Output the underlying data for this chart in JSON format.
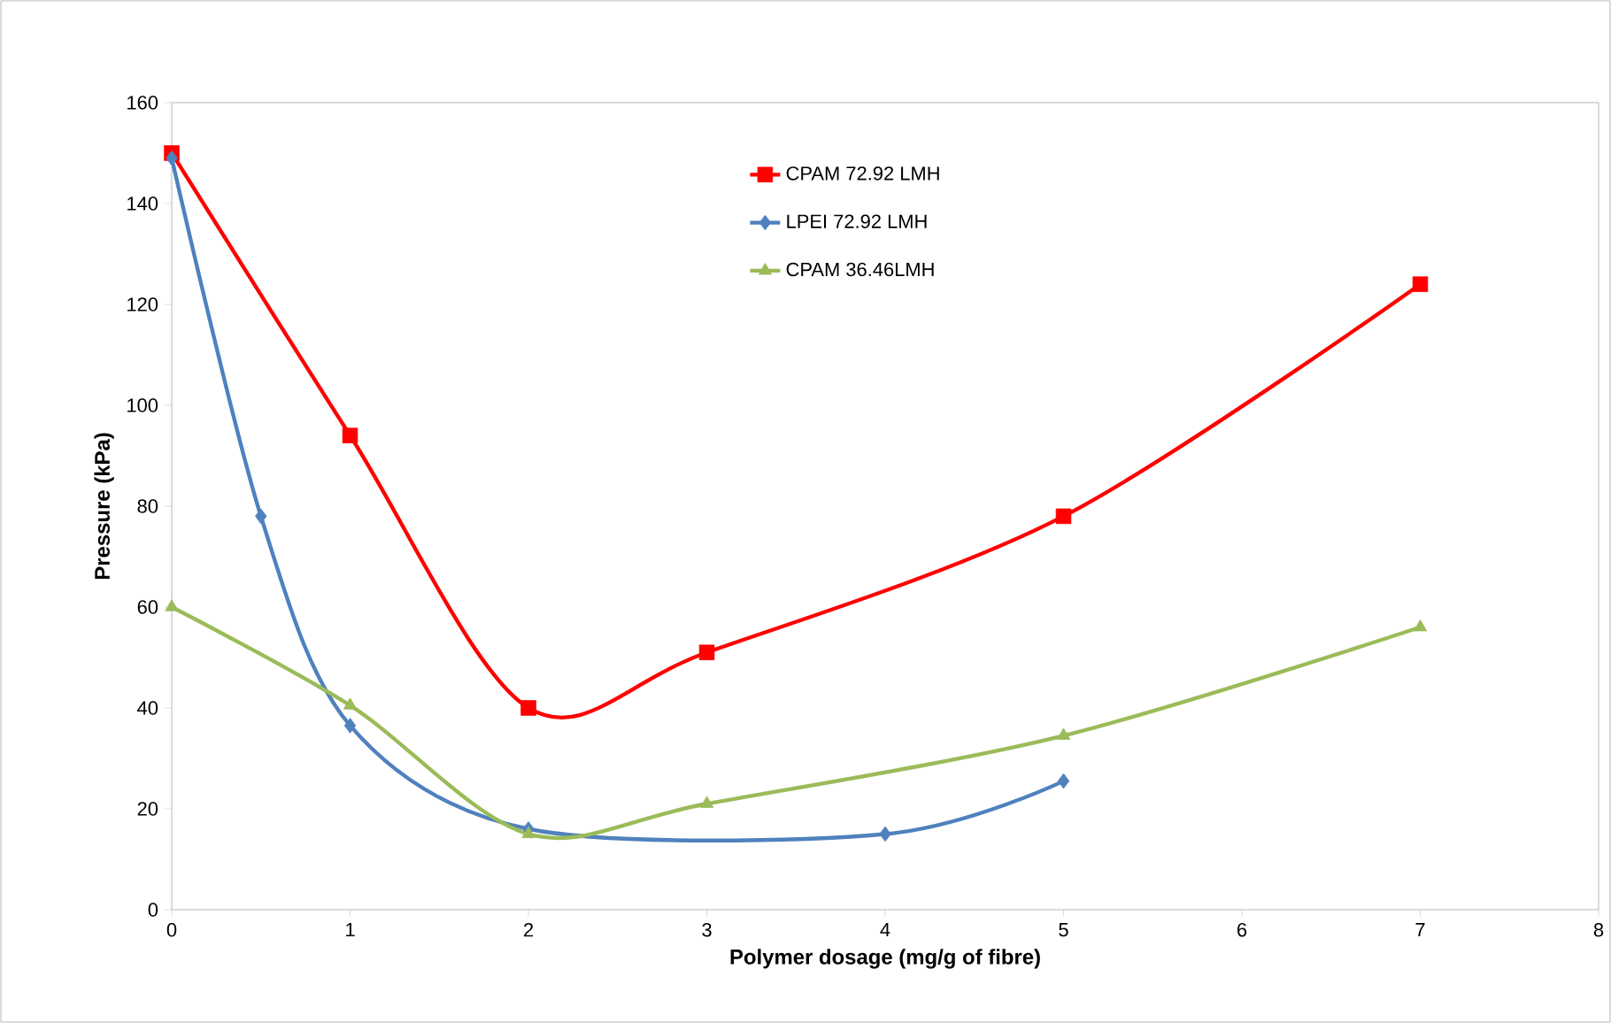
{
  "chart_data": {
    "type": "line",
    "xlabel": "Polymer dosage (mg/g of fibre)",
    "ylabel": "Pressure (kPa)",
    "xlim": [
      0,
      8
    ],
    "xticks": [
      0,
      1,
      2,
      3,
      4,
      5,
      6,
      7,
      8
    ],
    "ylim": [
      0,
      160
    ],
    "yticks": [
      0,
      20,
      40,
      60,
      80,
      100,
      120,
      140,
      160
    ],
    "grid": false,
    "legend": "top",
    "line_style": "solid",
    "series": [
      {
        "name": "CPAM 72.92 LMH",
        "color": "#ff0000",
        "marker": "square",
        "x": [
          0,
          1,
          2,
          3,
          5,
          7
        ],
        "values": [
          150,
          94,
          40,
          51,
          78,
          124
        ]
      },
      {
        "name": "LPEI 72.92 LMH",
        "color": "#4f81bd",
        "marker": "diamond",
        "x": [
          0,
          0.5,
          1,
          2,
          4,
          5
        ],
        "values": [
          149,
          78,
          36.5,
          16,
          15,
          25.5
        ]
      },
      {
        "name": "CPAM 36.46LMH",
        "color": "#9bbb59",
        "marker": "triangle",
        "x": [
          0,
          1,
          2,
          3,
          5,
          7
        ],
        "values": [
          60,
          40.5,
          15,
          21,
          34.5,
          56
        ]
      }
    ]
  }
}
